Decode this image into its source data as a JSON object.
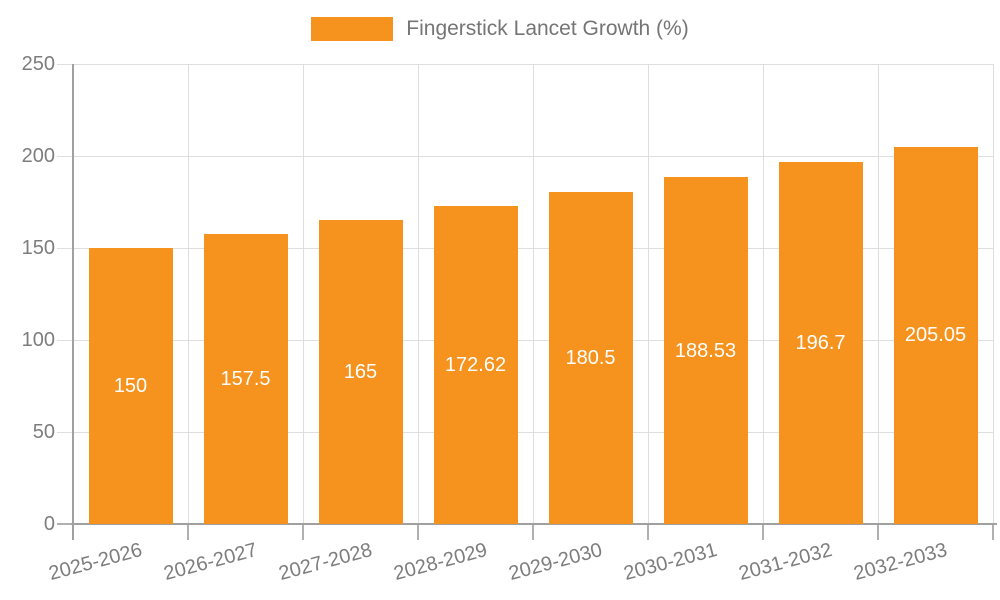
{
  "chart_data": {
    "type": "bar",
    "title": "",
    "legend": "Fingerstick Lancet Growth (%)",
    "legend_position": "top",
    "categories": [
      "2025-2026",
      "2026-2027",
      "2027-2028",
      "2028-2029",
      "2029-2030",
      "2030-2031",
      "2031-2032",
      "2032-2033"
    ],
    "values": [
      150,
      157.5,
      165,
      172.62,
      180.5,
      188.53,
      196.7,
      205.05
    ],
    "value_labels": [
      "150",
      "157.5",
      "165",
      "172.62",
      "180.5",
      "188.53",
      "196.7",
      "205.05"
    ],
    "xlabel": "",
    "ylabel": "",
    "ylim": [
      0,
      250
    ],
    "yticks": [
      0,
      50,
      100,
      150,
      200,
      250
    ],
    "grid": "on",
    "colors": {
      "bar": "#F6921E",
      "value_label": "#FFFFFF",
      "axis_text": "#7D7D7D",
      "grid_line": "#DEDEDE",
      "axis_line": "#A0A0A0",
      "tick_mark": "#B0B0B0",
      "background": "#FFFFFF"
    }
  }
}
